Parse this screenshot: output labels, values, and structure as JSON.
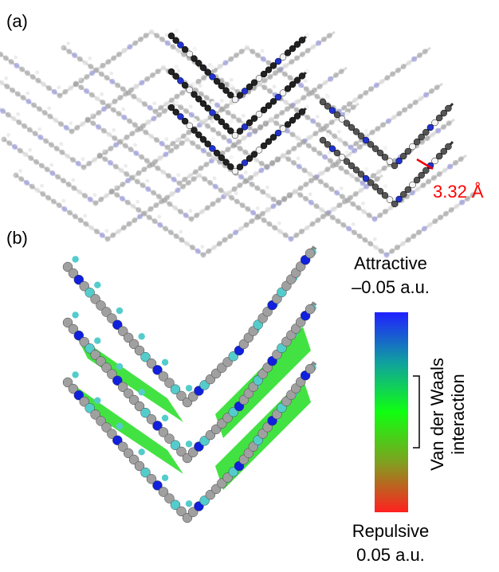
{
  "panels": {
    "a": {
      "label": "(a)",
      "distance_label": "3.32 Å"
    },
    "b": {
      "label": "(b)",
      "colorbar": {
        "top_label": "Attractive",
        "top_value": "–0.05 a.u.",
        "bottom_label": "Repulsive",
        "bottom_value": "0.05 a.u."
      },
      "bracket_label": [
        "Van der Waals",
        "interaction"
      ]
    }
  }
}
